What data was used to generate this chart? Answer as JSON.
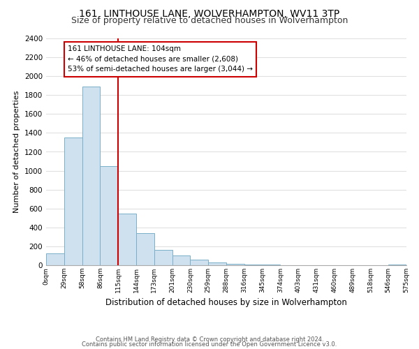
{
  "title": "161, LINTHOUSE LANE, WOLVERHAMPTON, WV11 3TP",
  "subtitle": "Size of property relative to detached houses in Wolverhampton",
  "xlabel": "Distribution of detached houses by size in Wolverhampton",
  "ylabel": "Number of detached properties",
  "bin_labels": [
    "0sqm",
    "29sqm",
    "58sqm",
    "86sqm",
    "115sqm",
    "144sqm",
    "173sqm",
    "201sqm",
    "230sqm",
    "259sqm",
    "288sqm",
    "316sqm",
    "345sqm",
    "374sqm",
    "403sqm",
    "431sqm",
    "460sqm",
    "489sqm",
    "518sqm",
    "546sqm",
    "575sqm"
  ],
  "bar_heights": [
    125,
    1350,
    1890,
    1050,
    550,
    340,
    160,
    105,
    60,
    30,
    15,
    8,
    4,
    2,
    1,
    1,
    0,
    0,
    0,
    5
  ],
  "bar_color": "#cfe0ee",
  "bar_edge_color": "#7aaec8",
  "property_line_x": 3,
  "property_line_color": "#cc0000",
  "annotation_line1": "161 LINTHOUSE LANE: 104sqm",
  "annotation_line2": "← 46% of detached houses are smaller (2,608)",
  "annotation_line3": "53% of semi-detached houses are larger (3,044) →",
  "annotation_box_edge": "#cc0000",
  "ylim": [
    0,
    2400
  ],
  "yticks": [
    0,
    200,
    400,
    600,
    800,
    1000,
    1200,
    1400,
    1600,
    1800,
    2000,
    2200,
    2400
  ],
  "footer1": "Contains HM Land Registry data © Crown copyright and database right 2024.",
  "footer2": "Contains public sector information licensed under the Open Government Licence v3.0.",
  "background_color": "#ffffff",
  "grid_color": "#e0e0e0",
  "title_fontsize": 10,
  "subtitle_fontsize": 9
}
